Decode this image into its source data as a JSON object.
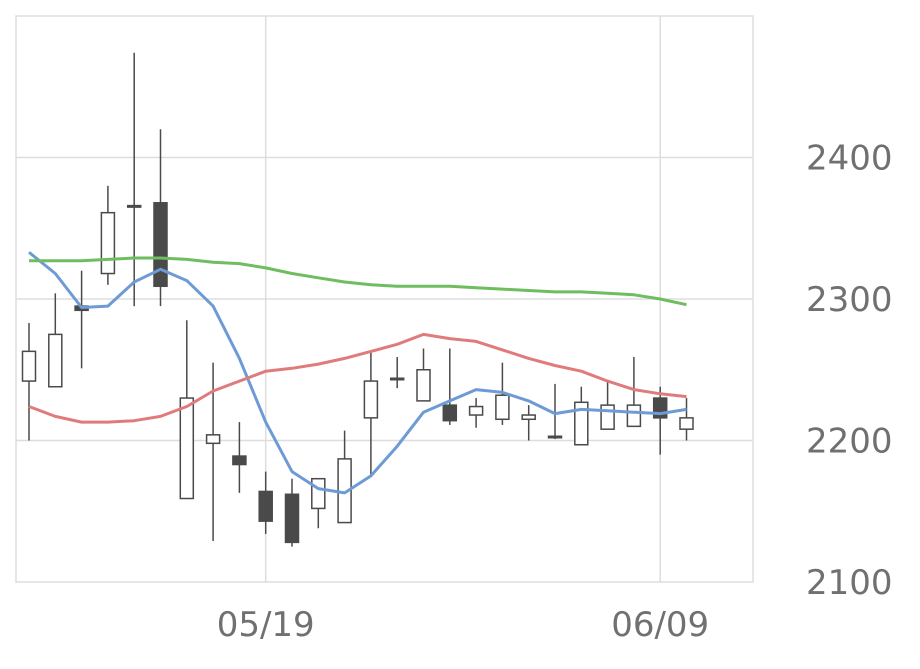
{
  "chart_data": {
    "type": "candlestick",
    "title": "",
    "xlabel": "",
    "ylabel": "",
    "ylim": [
      2100,
      2500
    ],
    "y_ticks": [
      2100,
      2200,
      2300,
      2400
    ],
    "x_ticks": [
      {
        "index": 9,
        "label": "05/19"
      },
      {
        "index": 24,
        "label": "06/09"
      }
    ],
    "grid": true,
    "candles": [
      {
        "open": 2242,
        "close": 2263,
        "high": 2283,
        "low": 2200
      },
      {
        "open": 2238,
        "close": 2275,
        "high": 2304,
        "low": 2238
      },
      {
        "open": 2295,
        "close": 2292,
        "high": 2320,
        "low": 2251
      },
      {
        "open": 2318,
        "close": 2361,
        "high": 2380,
        "low": 2310
      },
      {
        "open": 2366,
        "close": 2365,
        "high": 2474,
        "low": 2295
      },
      {
        "open": 2368,
        "close": 2309,
        "high": 2420,
        "low": 2295
      },
      {
        "open": 2159,
        "close": 2230,
        "high": 2285,
        "low": 2159
      },
      {
        "open": 2198,
        "close": 2204,
        "high": 2255,
        "low": 2129
      },
      {
        "open": 2189,
        "close": 2183,
        "high": 2213,
        "low": 2163
      },
      {
        "open": 2164,
        "close": 2143,
        "high": 2178,
        "low": 2134
      },
      {
        "open": 2162,
        "close": 2128,
        "high": 2173,
        "low": 2125
      },
      {
        "open": 2152,
        "close": 2173,
        "high": 2173,
        "low": 2138
      },
      {
        "open": 2142,
        "close": 2187,
        "high": 2207,
        "low": 2142
      },
      {
        "open": 2216,
        "close": 2242,
        "high": 2262,
        "low": 2175
      },
      {
        "open": 2244,
        "close": 2244,
        "high": 2259,
        "low": 2237
      },
      {
        "open": 2228,
        "close": 2250,
        "high": 2265,
        "low": 2228
      },
      {
        "open": 2225,
        "close": 2214,
        "high": 2265,
        "low": 2211
      },
      {
        "open": 2218,
        "close": 2224,
        "high": 2230,
        "low": 2209
      },
      {
        "open": 2215,
        "close": 2232,
        "high": 2255,
        "low": 2211
      },
      {
        "open": 2215,
        "close": 2218,
        "high": 2225,
        "low": 2200
      },
      {
        "open": 2203,
        "close": 2202,
        "high": 2240,
        "low": 2201
      },
      {
        "open": 2197,
        "close": 2227,
        "high": 2238,
        "low": 2197
      },
      {
        "open": 2208,
        "close": 2225,
        "high": 2242,
        "low": 2208
      },
      {
        "open": 2210,
        "close": 2225,
        "high": 2259,
        "low": 2210
      },
      {
        "open": 2230,
        "close": 2216,
        "high": 2238,
        "low": 2190
      },
      {
        "open": 2208,
        "close": 2216,
        "high": 2230,
        "low": 2200
      }
    ],
    "series": [
      {
        "color": "#6e9ad6",
        "values": [
          2333,
          2318,
          2294,
          2295,
          2312,
          2321,
          2313,
          2295,
          2258,
          2213,
          2178,
          2166,
          2163,
          2175,
          2196,
          2220,
          2228,
          2236,
          2234,
          2228,
          2219,
          2222,
          2221,
          2220,
          2219,
          2222
        ]
      },
      {
        "color": "#e07b7b",
        "values": [
          2224,
          2217,
          2213,
          2213,
          2214,
          2217,
          2224,
          2235,
          2242,
          2249,
          2251,
          2254,
          2258,
          2263,
          2268,
          2275,
          2272,
          2270,
          2264,
          2258,
          2253,
          2249,
          2242,
          2236,
          2233,
          2231
        ]
      },
      {
        "color": "#6ebd5f",
        "values": [
          2327,
          2327,
          2327,
          2328,
          2329,
          2329,
          2328,
          2326,
          2325,
          2322,
          2318,
          2315,
          2312,
          2310,
          2309,
          2309,
          2309,
          2308,
          2307,
          2306,
          2305,
          2305,
          2304,
          2303,
          2300,
          2296
        ]
      }
    ],
    "colors": {
      "up_fill": "#ffffff",
      "down_fill": "#4a4a4a",
      "candle_stroke": "#4a4a4a",
      "grid": "#dddddd",
      "tick_text": "#707070"
    }
  }
}
